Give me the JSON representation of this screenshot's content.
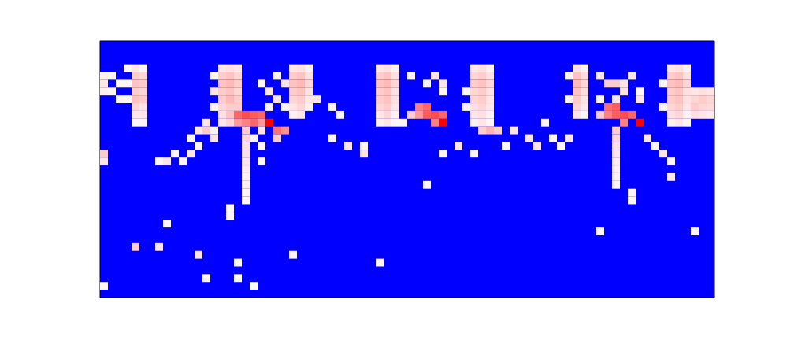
{
  "chart_data": {
    "type": "heatmap",
    "xlim": [
      0,
      78
    ],
    "ylim": [
      0,
      33
    ],
    "zlim": [
      0,
      1
    ],
    "colormap": [
      "#0000ff",
      "#ffffff",
      "#ff0000"
    ],
    "tick_labels": false,
    "grid": false,
    "cells": [
      [
        0,
        4,
        0.53
      ],
      [
        0,
        5,
        0.55
      ],
      [
        0,
        6,
        0.53
      ],
      [
        1,
        4,
        0.52
      ],
      [
        1,
        6,
        0.52
      ],
      [
        2,
        5,
        0.52
      ],
      [
        2,
        7,
        0.52
      ],
      [
        0,
        14,
        0.6
      ],
      [
        0,
        15,
        0.55
      ],
      [
        3,
        3,
        0.52
      ],
      [
        3,
        5,
        0.52
      ],
      [
        3,
        7,
        0.51
      ],
      [
        4,
        3,
        0.55
      ],
      [
        4,
        4,
        0.6
      ],
      [
        4,
        5,
        0.62
      ],
      [
        4,
        6,
        0.6
      ],
      [
        4,
        7,
        0.62
      ],
      [
        4,
        8,
        0.58
      ],
      [
        4,
        9,
        0.55
      ],
      [
        4,
        10,
        0.52
      ],
      [
        5,
        3,
        0.52
      ],
      [
        5,
        4,
        0.58
      ],
      [
        5,
        5,
        0.6
      ],
      [
        5,
        6,
        0.58
      ],
      [
        5,
        7,
        0.6
      ],
      [
        5,
        8,
        0.55
      ],
      [
        5,
        9,
        0.55
      ],
      [
        5,
        10,
        0.52
      ],
      [
        7,
        15,
        0.52
      ],
      [
        8,
        15,
        0.55
      ],
      [
        9,
        14,
        0.52
      ],
      [
        10,
        15,
        0.52
      ],
      [
        11,
        14,
        0.55
      ],
      [
        12,
        13,
        0.52
      ],
      [
        13,
        10,
        0.55
      ],
      [
        12,
        11,
        0.55
      ],
      [
        13,
        11,
        0.6
      ],
      [
        14,
        11,
        0.52
      ],
      [
        11,
        12,
        0.52
      ],
      [
        14,
        12,
        0.55
      ],
      [
        14,
        4,
        0.52
      ],
      [
        14,
        6,
        0.55
      ],
      [
        14,
        8,
        0.52
      ],
      [
        15,
        3,
        0.55
      ],
      [
        15,
        4,
        0.6
      ],
      [
        15,
        5,
        0.62
      ],
      [
        15,
        6,
        0.6
      ],
      [
        15,
        7,
        0.6
      ],
      [
        15,
        8,
        0.58
      ],
      [
        15,
        9,
        0.56
      ],
      [
        15,
        10,
        0.55
      ],
      [
        16,
        3,
        0.56
      ],
      [
        16,
        4,
        0.62
      ],
      [
        16,
        5,
        0.64
      ],
      [
        16,
        6,
        0.62
      ],
      [
        16,
        7,
        0.64
      ],
      [
        16,
        8,
        0.6
      ],
      [
        16,
        9,
        0.62
      ],
      [
        16,
        10,
        0.58
      ],
      [
        17,
        3,
        0.55
      ],
      [
        17,
        4,
        0.58
      ],
      [
        17,
        5,
        0.6
      ],
      [
        17,
        6,
        0.58
      ],
      [
        17,
        7,
        0.6
      ],
      [
        17,
        8,
        0.6
      ],
      [
        17,
        9,
        0.8
      ],
      [
        17,
        10,
        0.7
      ],
      [
        18,
        9,
        0.85
      ],
      [
        19,
        9,
        0.82
      ],
      [
        20,
        9,
        0.8
      ],
      [
        18,
        10,
        0.75
      ],
      [
        19,
        10,
        0.8
      ],
      [
        20,
        10,
        0.7
      ],
      [
        21,
        10,
        1
      ],
      [
        18,
        11,
        0.6
      ],
      [
        18,
        12,
        0.58
      ],
      [
        18,
        13,
        0.56
      ],
      [
        18,
        14,
        0.56
      ],
      [
        18,
        15,
        0.55
      ],
      [
        18,
        16,
        0.54
      ],
      [
        18,
        17,
        0.53
      ],
      [
        18,
        18,
        0.53
      ],
      [
        18,
        19,
        0.52
      ],
      [
        18,
        20,
        0.52
      ],
      [
        19,
        12,
        0.52
      ],
      [
        20,
        11,
        0.55
      ],
      [
        20,
        13,
        0.52
      ],
      [
        20,
        15,
        0.52
      ],
      [
        20,
        5,
        0.52
      ],
      [
        21,
        6,
        0.55
      ],
      [
        22,
        4,
        0.52
      ],
      [
        22,
        7,
        0.55
      ],
      [
        23,
        5,
        0.55
      ],
      [
        23,
        8,
        0.52
      ],
      [
        21,
        8,
        0.52
      ],
      [
        22,
        11,
        0.78
      ],
      [
        23,
        11,
        0.72
      ],
      [
        22,
        12,
        0.6
      ],
      [
        24,
        3,
        0.55
      ],
      [
        24,
        4,
        0.6
      ],
      [
        24,
        5,
        0.62
      ],
      [
        24,
        6,
        0.6
      ],
      [
        24,
        7,
        0.58
      ],
      [
        24,
        8,
        0.55
      ],
      [
        24,
        9,
        0.53
      ],
      [
        25,
        3,
        0.56
      ],
      [
        25,
        4,
        0.62
      ],
      [
        25,
        5,
        0.64
      ],
      [
        25,
        6,
        0.62
      ],
      [
        25,
        7,
        0.6
      ],
      [
        25,
        8,
        0.58
      ],
      [
        25,
        9,
        0.55
      ],
      [
        26,
        3,
        0.53
      ],
      [
        26,
        4,
        0.56
      ],
      [
        26,
        5,
        0.58
      ],
      [
        26,
        6,
        0.56
      ],
      [
        26,
        7,
        0.55
      ],
      [
        26,
        8,
        0.53
      ],
      [
        27,
        7,
        0.55
      ],
      [
        29,
        8,
        0.52
      ],
      [
        30,
        9,
        0.52
      ],
      [
        29,
        12,
        0.52
      ],
      [
        31,
        13,
        0.55
      ],
      [
        33,
        13,
        0.52
      ],
      [
        33,
        14,
        0.55
      ],
      [
        35,
        3,
        0.55
      ],
      [
        35,
        4,
        0.6
      ],
      [
        35,
        5,
        0.62
      ],
      [
        35,
        6,
        0.6
      ],
      [
        35,
        7,
        0.6
      ],
      [
        35,
        8,
        0.58
      ],
      [
        35,
        9,
        0.55
      ],
      [
        35,
        10,
        0.53
      ],
      [
        36,
        3,
        0.56
      ],
      [
        36,
        4,
        0.62
      ],
      [
        36,
        5,
        0.64
      ],
      [
        36,
        6,
        0.62
      ],
      [
        36,
        7,
        0.62
      ],
      [
        36,
        8,
        0.6
      ],
      [
        36,
        9,
        0.58
      ],
      [
        36,
        10,
        0.55
      ],
      [
        37,
        3,
        0.53
      ],
      [
        37,
        4,
        0.56
      ],
      [
        37,
        5,
        0.58
      ],
      [
        37,
        6,
        0.56
      ],
      [
        37,
        7,
        0.56
      ],
      [
        37,
        8,
        0.55
      ],
      [
        37,
        9,
        0.53
      ],
      [
        37,
        10,
        0.52
      ],
      [
        38,
        10,
        0.52
      ],
      [
        39,
        4,
        0.52
      ],
      [
        41,
        5,
        0.52
      ],
      [
        42,
        4,
        0.55
      ],
      [
        43,
        5,
        0.55
      ],
      [
        43,
        6,
        0.52
      ],
      [
        40,
        8,
        0.75
      ],
      [
        41,
        8,
        0.8
      ],
      [
        42,
        9,
        0.85
      ],
      [
        40,
        9,
        0.7
      ],
      [
        41,
        9,
        0.82
      ],
      [
        43,
        9,
        0.8
      ],
      [
        42,
        10,
        0.75
      ],
      [
        43,
        10,
        1
      ],
      [
        39,
        9,
        0.6
      ],
      [
        46,
        6,
        0.52
      ],
      [
        46,
        8,
        0.52
      ],
      [
        47,
        3,
        0.55
      ],
      [
        47,
        4,
        0.58
      ],
      [
        47,
        5,
        0.6
      ],
      [
        47,
        6,
        0.58
      ],
      [
        47,
        7,
        0.58
      ],
      [
        47,
        8,
        0.56
      ],
      [
        47,
        9,
        0.55
      ],
      [
        47,
        10,
        0.53
      ],
      [
        48,
        3,
        0.56
      ],
      [
        48,
        4,
        0.6
      ],
      [
        48,
        5,
        0.62
      ],
      [
        48,
        6,
        0.6
      ],
      [
        48,
        7,
        0.6
      ],
      [
        48,
        8,
        0.58
      ],
      [
        48,
        9,
        0.56
      ],
      [
        48,
        10,
        0.55
      ],
      [
        49,
        3,
        0.53
      ],
      [
        49,
        4,
        0.56
      ],
      [
        49,
        5,
        0.58
      ],
      [
        49,
        6,
        0.56
      ],
      [
        49,
        7,
        0.55
      ],
      [
        49,
        8,
        0.55
      ],
      [
        49,
        9,
        0.53
      ],
      [
        49,
        10,
        0.52
      ],
      [
        48,
        11,
        0.6
      ],
      [
        49,
        11,
        0.65
      ],
      [
        50,
        11,
        0.6
      ],
      [
        45,
        13,
        0.55
      ],
      [
        47,
        14,
        0.52
      ],
      [
        52,
        11,
        0.55
      ],
      [
        54,
        12,
        0.55
      ],
      [
        55,
        13,
        0.55
      ],
      [
        56,
        10,
        0.52
      ],
      [
        51,
        13,
        0.52
      ],
      [
        41,
        18,
        0.52
      ],
      [
        43,
        14,
        0.52
      ],
      [
        59,
        4,
        0.52
      ],
      [
        59,
        7,
        0.52
      ],
      [
        60,
        3,
        0.56
      ],
      [
        60,
        4,
        0.62
      ],
      [
        60,
        5,
        0.64
      ],
      [
        60,
        6,
        0.62
      ],
      [
        60,
        7,
        0.6
      ],
      [
        60,
        8,
        0.58
      ],
      [
        60,
        9,
        0.55
      ],
      [
        61,
        3,
        0.53
      ],
      [
        61,
        4,
        0.57
      ],
      [
        61,
        5,
        0.58
      ],
      [
        61,
        6,
        0.57
      ],
      [
        61,
        7,
        0.55
      ],
      [
        61,
        8,
        0.54
      ],
      [
        61,
        9,
        0.52
      ],
      [
        63,
        4,
        0.55
      ],
      [
        64,
        5,
        0.6
      ],
      [
        65,
        5,
        0.6
      ],
      [
        66,
        5,
        0.55
      ],
      [
        67,
        4,
        0.55
      ],
      [
        66,
        6,
        0.55
      ],
      [
        65,
        7,
        0.55
      ],
      [
        63,
        7,
        0.52
      ],
      [
        68,
        6,
        0.52
      ],
      [
        68,
        7,
        0.55
      ],
      [
        64,
        8,
        0.78
      ],
      [
        65,
        8,
        0.82
      ],
      [
        66,
        9,
        0.85
      ],
      [
        64,
        9,
        0.75
      ],
      [
        65,
        9,
        0.82
      ],
      [
        67,
        9,
        0.8
      ],
      [
        66,
        10,
        0.75
      ],
      [
        68,
        10,
        1
      ],
      [
        63,
        9,
        0.6
      ],
      [
        65,
        11,
        0.6
      ],
      [
        65,
        12,
        0.58
      ],
      [
        65,
        13,
        0.56
      ],
      [
        65,
        14,
        0.55
      ],
      [
        65,
        15,
        0.54
      ],
      [
        65,
        16,
        0.53
      ],
      [
        65,
        17,
        0.53
      ],
      [
        65,
        18,
        0.52
      ],
      [
        71,
        5,
        0.52
      ],
      [
        71,
        8,
        0.52
      ],
      [
        72,
        3,
        0.55
      ],
      [
        72,
        4,
        0.6
      ],
      [
        72,
        5,
        0.62
      ],
      [
        72,
        6,
        0.6
      ],
      [
        72,
        7,
        0.6
      ],
      [
        72,
        8,
        0.58
      ],
      [
        72,
        9,
        0.56
      ],
      [
        72,
        10,
        0.53
      ],
      [
        73,
        3,
        0.56
      ],
      [
        73,
        4,
        0.62
      ],
      [
        73,
        5,
        0.64
      ],
      [
        73,
        6,
        0.62
      ],
      [
        73,
        7,
        0.62
      ],
      [
        73,
        8,
        0.6
      ],
      [
        73,
        9,
        0.58
      ],
      [
        73,
        10,
        0.55
      ],
      [
        74,
        3,
        0.53
      ],
      [
        74,
        4,
        0.56
      ],
      [
        74,
        5,
        0.58
      ],
      [
        74,
        6,
        0.56
      ],
      [
        74,
        7,
        0.56
      ],
      [
        74,
        8,
        0.55
      ],
      [
        74,
        9,
        0.53
      ],
      [
        74,
        10,
        0.52
      ],
      [
        75,
        6,
        0.55
      ],
      [
        75,
        7,
        0.58
      ],
      [
        75,
        8,
        0.6
      ],
      [
        75,
        9,
        0.56
      ],
      [
        76,
        6,
        0.56
      ],
      [
        76,
        7,
        0.6
      ],
      [
        76,
        8,
        0.58
      ],
      [
        76,
        9,
        0.55
      ],
      [
        77,
        6,
        0.55
      ],
      [
        77,
        7,
        0.58
      ],
      [
        77,
        8,
        0.57
      ],
      [
        77,
        9,
        0.54
      ],
      [
        69,
        12,
        0.55
      ],
      [
        70,
        13,
        0.52
      ],
      [
        71,
        14,
        0.55
      ],
      [
        72,
        15,
        0.52
      ],
      [
        72,
        17,
        0.55
      ],
      [
        67,
        19,
        0.52
      ],
      [
        67,
        20,
        0.52
      ],
      [
        63,
        24,
        0.52
      ],
      [
        75,
        24,
        0.52
      ],
      [
        57,
        12,
        0.52
      ],
      [
        58,
        13,
        0.52
      ],
      [
        59,
        12,
        0.55
      ],
      [
        8,
        23,
        0.52
      ],
      [
        16,
        21,
        0.52
      ],
      [
        16,
        22,
        0.52
      ],
      [
        4,
        26,
        0.6
      ],
      [
        7,
        26,
        0.55
      ],
      [
        12,
        27,
        0.55
      ],
      [
        24,
        27,
        0.52
      ],
      [
        35,
        28,
        0.52
      ],
      [
        0,
        31,
        0.52
      ],
      [
        13,
        30,
        0.52
      ],
      [
        17,
        28,
        0.51
      ],
      [
        17,
        30,
        0.51
      ],
      [
        19,
        31,
        0.51
      ]
    ]
  }
}
